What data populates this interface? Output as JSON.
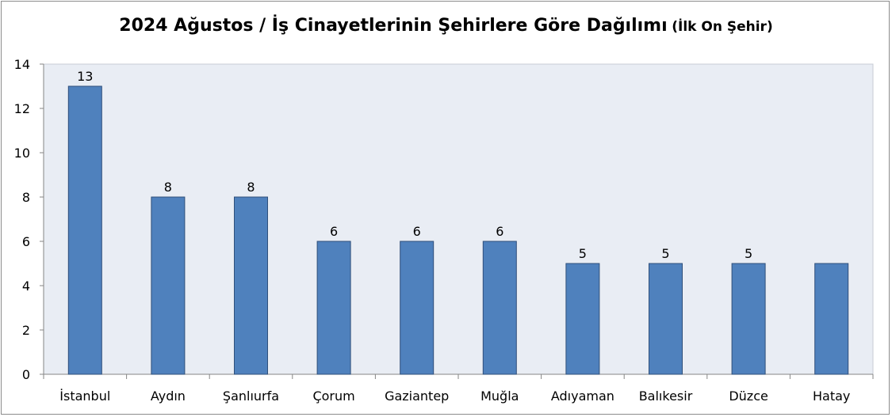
{
  "chart_data": {
    "type": "bar",
    "title": "2024 Ağustos / İş Cinayetlerinin Şehirlere Göre Dağılımı",
    "subtitle": "(İlk On Şehir)",
    "categories": [
      "İstanbul",
      "Aydın",
      "Şanlıurfa",
      "Çorum",
      "Gaziantep",
      "Muğla",
      "Adıyaman",
      "Balıkesir",
      "Düzce",
      "Hatay"
    ],
    "values": [
      13,
      8,
      8,
      6,
      6,
      6,
      5,
      5,
      5,
      5
    ],
    "data_labels": [
      "13",
      "8",
      "8",
      "6",
      "6",
      "6",
      "5",
      "5",
      "5",
      ""
    ],
    "ylim": [
      0,
      14
    ],
    "yticks": [
      0,
      2,
      4,
      6,
      8,
      10,
      12,
      14
    ],
    "xlabel": "",
    "ylabel": "",
    "grid": false,
    "legend": "none",
    "colors": {
      "bar": "#4f81bd",
      "bar_border": "#2f4f7a",
      "plot_background": "#e9edf4",
      "axis": "#868686"
    }
  }
}
